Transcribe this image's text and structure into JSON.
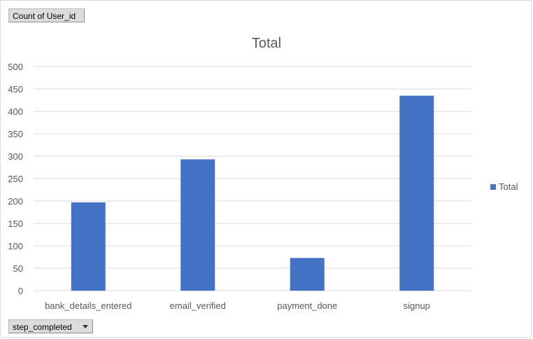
{
  "field_buttons": {
    "value_field": "Count  of User_id",
    "axis_field": "step_completed"
  },
  "chart_data": {
    "type": "bar",
    "title": "Total",
    "categories": [
      "bank_details_entered",
      "email_verified",
      "payment_done",
      "signup"
    ],
    "series": [
      {
        "name": "Total",
        "values": [
          197,
          293,
          73,
          435
        ],
        "color": "#4472c4"
      }
    ],
    "ylim": [
      0,
      500
    ],
    "yticks": [
      0,
      50,
      100,
      150,
      200,
      250,
      300,
      350,
      400,
      450,
      500
    ],
    "grid": true,
    "legend_position": "right"
  },
  "legend": {
    "label": "Total"
  },
  "icons": {
    "axis_field_dropdown": "chevron-down-icon"
  }
}
